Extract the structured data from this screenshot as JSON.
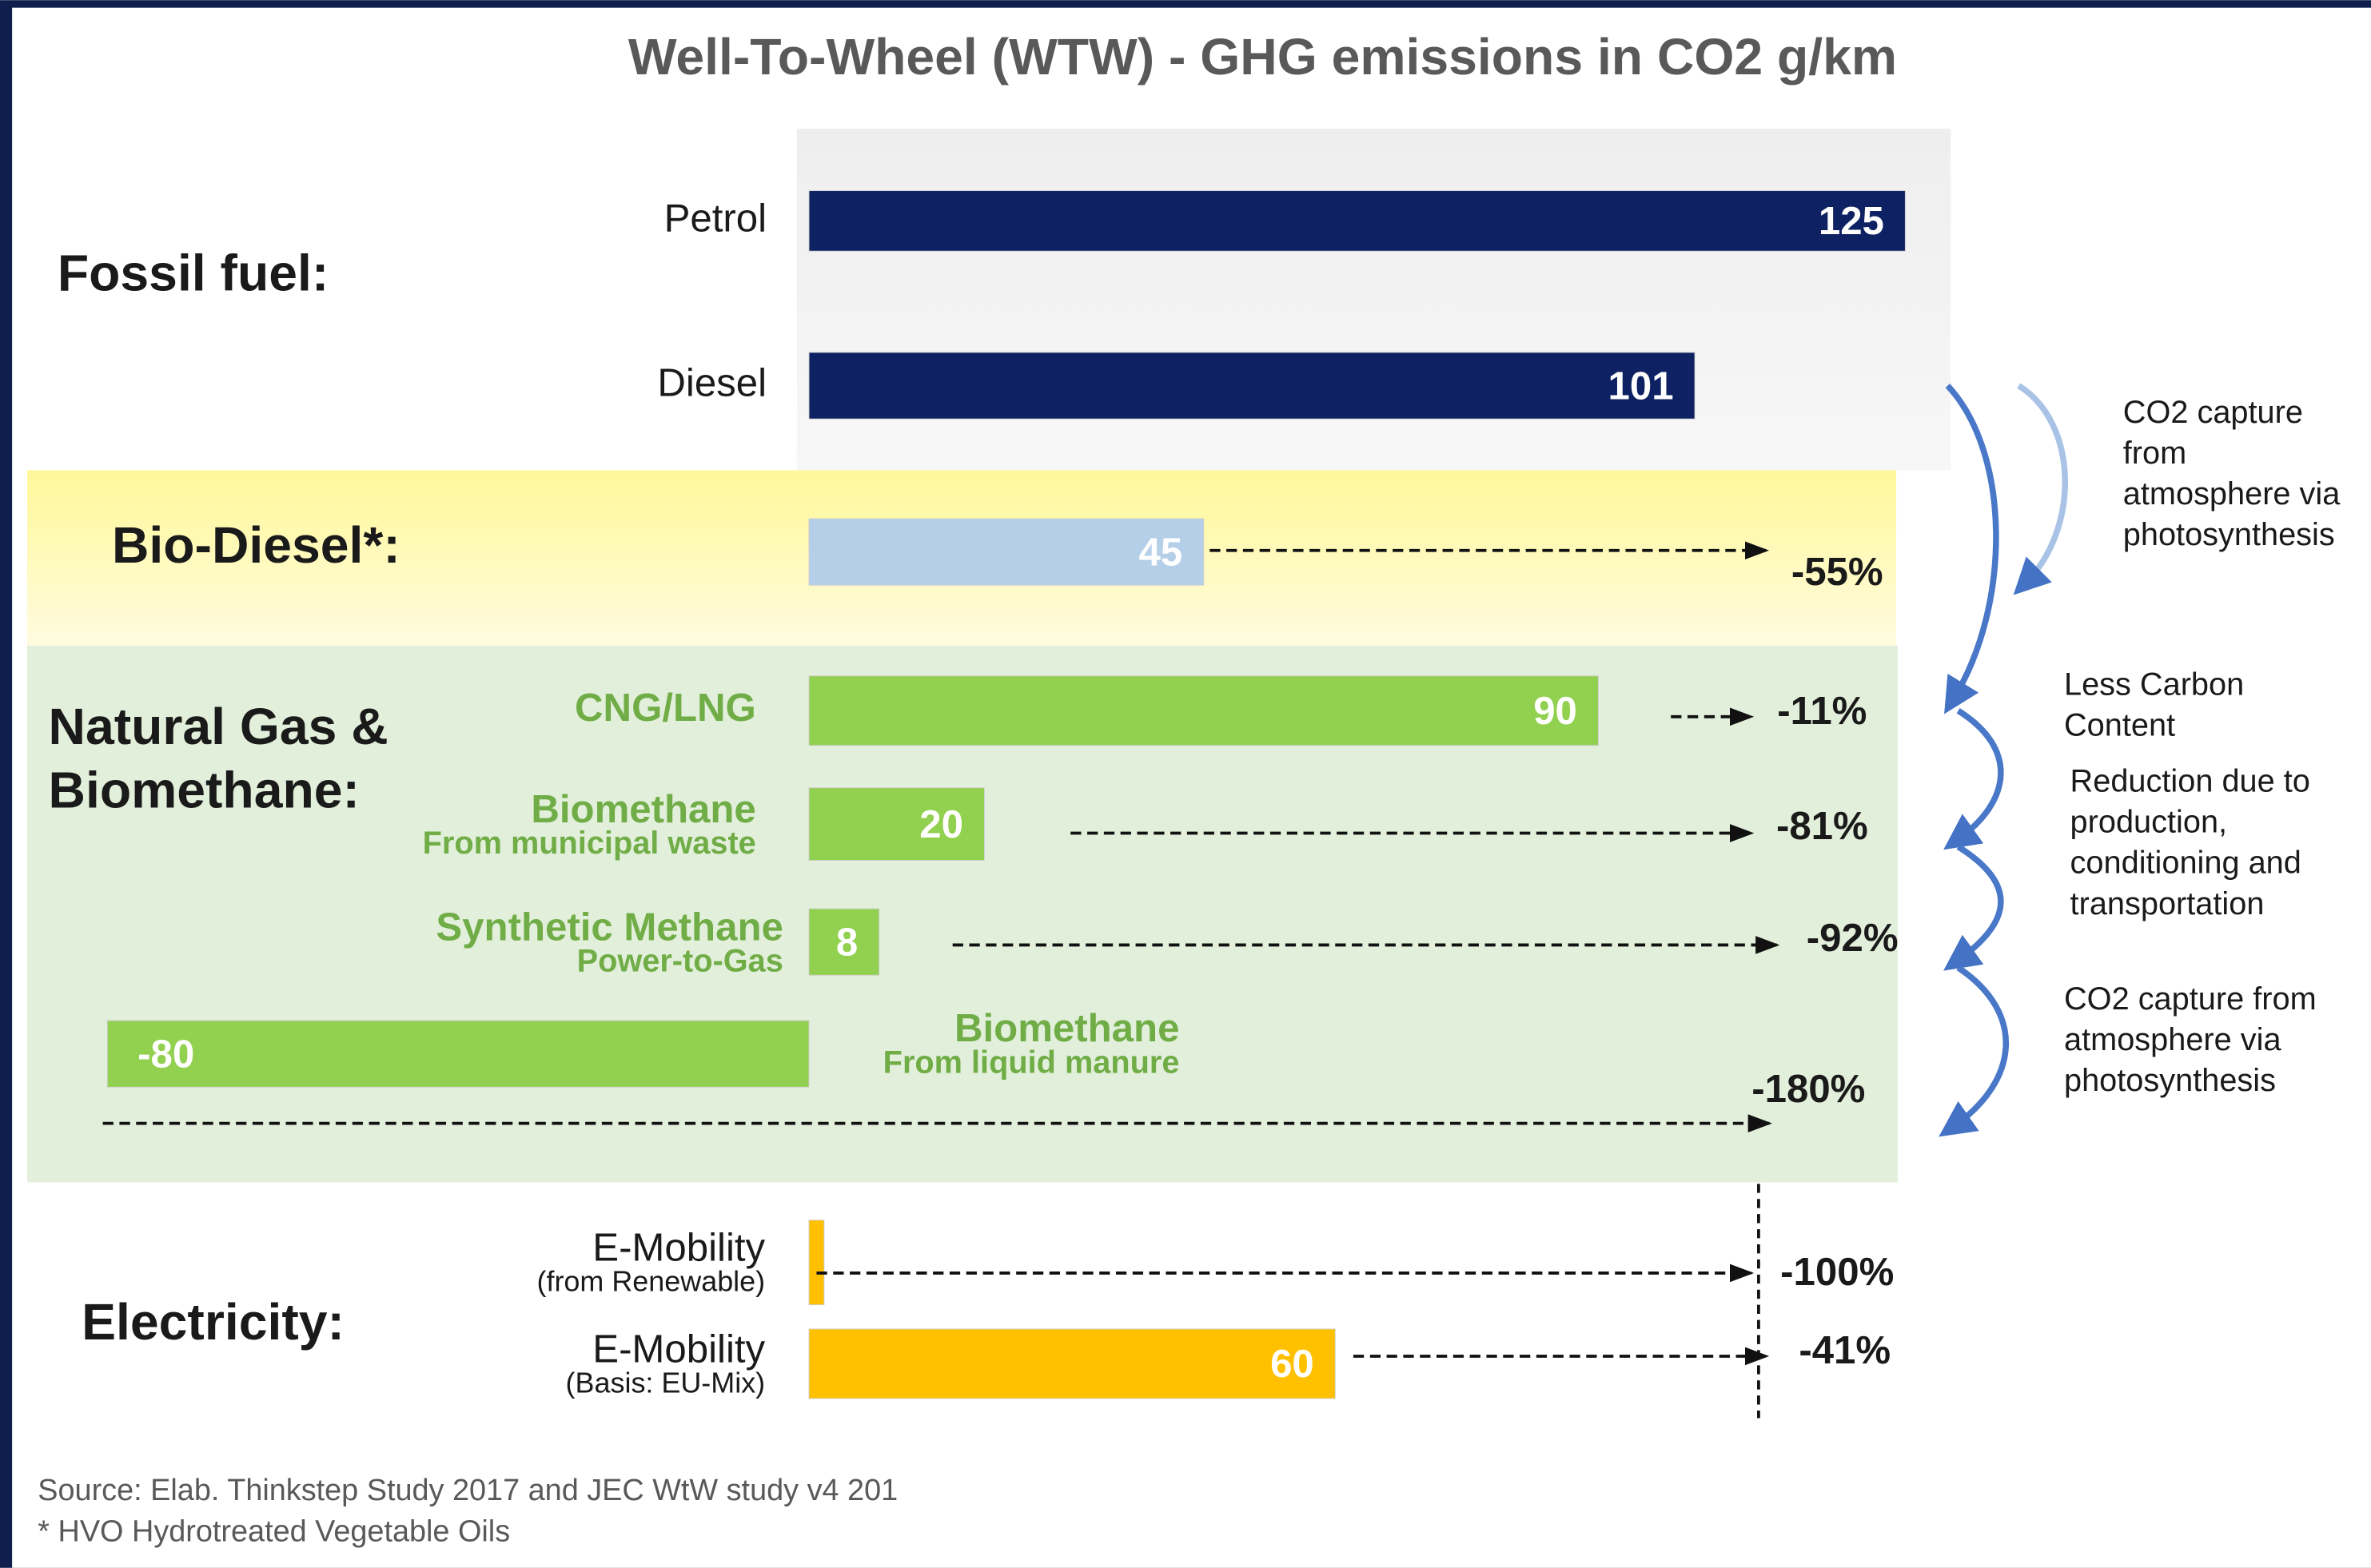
{
  "chart_data": {
    "type": "bar",
    "orientation": "horizontal",
    "title": "Well-To-Wheel (WTW) - GHG emissions in CO2 g/km",
    "groups": [
      [
        "Fossil fuel:"
      ],
      [
        "Bio-Diesel*:"
      ],
      [
        "Natural Gas &",
        "Biomethane:"
      ],
      [
        "Electricity:"
      ]
    ],
    "categories": [
      "Petrol",
      "Diesel",
      null,
      "CNG/LNG",
      "Biomethane",
      "Synthetic Methane",
      "Biomethane",
      "E-Mobility",
      "E-Mobility"
    ],
    "sublabels": [
      null,
      null,
      null,
      null,
      "From municipal  waste",
      "Power-to-Gas",
      "From liquid  manure",
      "(from Renewable)",
      "(Basis: EU-Mix)"
    ],
    "values": [
      125,
      101,
      45,
      90,
      20,
      8,
      -80,
      0,
      60
    ],
    "colors": [
      "#0e2162",
      "#0e2162",
      "#b4cfe7",
      "#92d050",
      "#92d050",
      "#92d050",
      "#92d050",
      "#ffc000",
      "#ffc000"
    ],
    "label_colors": [
      "#1a1a1a",
      "#1a1a1a",
      null,
      "#70ad47",
      "#70ad47",
      "#70ad47",
      "#70ad47",
      "#1a1a1a",
      "#1a1a1a"
    ],
    "reductions": [
      null,
      null,
      "-55%",
      "-11%",
      "-81%",
      "-92%",
      "-180%",
      "-100%",
      "-41%"
    ],
    "annotations": [
      [
        "CO2 capture",
        "from",
        "atmosphere via",
        "photosynthesis"
      ],
      [
        "Less Carbon",
        "Content"
      ],
      [
        "Reduction due to",
        "production,",
        "conditioning and",
        "transportation"
      ],
      [
        "CO2 capture from",
        "atmosphere via",
        "photosynthesis"
      ]
    ],
    "notes": [
      "Source: Elab. Thinkstep Study 2017 and JEC WtW study v4 201",
      "* HVO  Hydrotreated  Vegetable  Oils"
    ]
  }
}
